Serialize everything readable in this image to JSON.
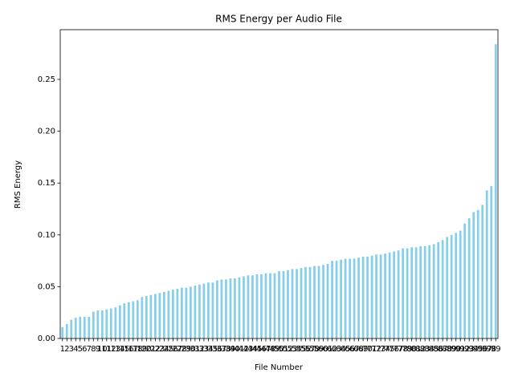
{
  "chart_data": {
    "type": "bar",
    "title": "RMS Energy per Audio File",
    "xlabel": "File Number",
    "ylabel": "RMS Energy",
    "categories": [
      "1",
      "2",
      "3",
      "4",
      "5",
      "6",
      "7",
      "8",
      "9",
      "10",
      "11",
      "12",
      "13",
      "14",
      "15",
      "16",
      "17",
      "18",
      "19",
      "20",
      "21",
      "22",
      "23",
      "24",
      "25",
      "26",
      "27",
      "28",
      "29",
      "30",
      "31",
      "32",
      "33",
      "34",
      "35",
      "36",
      "37",
      "38",
      "39",
      "40",
      "41",
      "42",
      "43",
      "44",
      "45",
      "46",
      "47",
      "48",
      "49",
      "50",
      "51",
      "52",
      "53",
      "54",
      "55",
      "56",
      "57",
      "58",
      "59",
      "60",
      "61",
      "62",
      "63",
      "64",
      "65",
      "66",
      "67",
      "68",
      "69",
      "70",
      "71",
      "72",
      "73",
      "74",
      "75",
      "76",
      "77",
      "78",
      "79",
      "80",
      "81",
      "82",
      "83",
      "84",
      "85",
      "86",
      "87",
      "88",
      "89",
      "90",
      "91",
      "92",
      "93",
      "94",
      "95",
      "96",
      "97",
      "98",
      "99"
    ],
    "values": [
      0.011,
      0.014,
      0.018,
      0.02,
      0.021,
      0.021,
      0.021,
      0.026,
      0.027,
      0.027,
      0.028,
      0.029,
      0.03,
      0.032,
      0.034,
      0.035,
      0.036,
      0.037,
      0.04,
      0.041,
      0.042,
      0.043,
      0.044,
      0.045,
      0.046,
      0.047,
      0.048,
      0.049,
      0.049,
      0.05,
      0.051,
      0.052,
      0.053,
      0.054,
      0.054,
      0.056,
      0.057,
      0.057,
      0.058,
      0.058,
      0.059,
      0.06,
      0.061,
      0.061,
      0.062,
      0.062,
      0.063,
      0.063,
      0.063,
      0.065,
      0.065,
      0.066,
      0.067,
      0.067,
      0.068,
      0.069,
      0.069,
      0.07,
      0.07,
      0.071,
      0.072,
      0.075,
      0.075,
      0.076,
      0.077,
      0.077,
      0.077,
      0.078,
      0.079,
      0.079,
      0.08,
      0.081,
      0.081,
      0.082,
      0.083,
      0.084,
      0.085,
      0.087,
      0.087,
      0.088,
      0.088,
      0.089,
      0.089,
      0.09,
      0.091,
      0.093,
      0.095,
      0.098,
      0.1,
      0.102,
      0.104,
      0.111,
      0.116,
      0.122,
      0.124,
      0.129,
      0.143,
      0.147,
      0.284
    ],
    "color": "#87ceeb",
    "ylim": [
      0,
      0.298
    ],
    "yticks": [
      {
        "value": 0,
        "label": "0.00"
      },
      0.05,
      {
        "value": 0.1,
        "label": "0.10"
      },
      0.15,
      {
        "value": 0.2,
        "label": "0.20"
      },
      0.25
    ]
  }
}
